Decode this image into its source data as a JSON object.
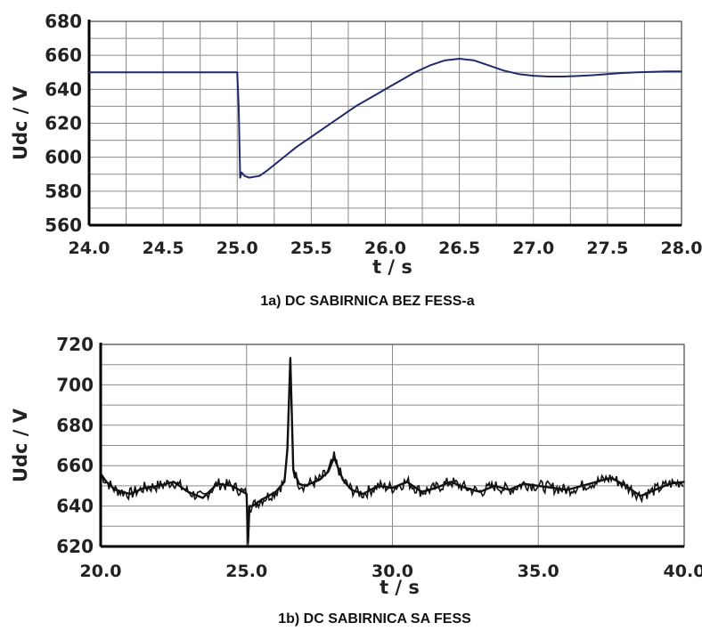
{
  "chart_data": [
    {
      "type": "line",
      "title": "1a) DC SABIRNICA BEZ FESS-a",
      "xlabel": "t / s",
      "ylabel": "Udc / V",
      "xlim": [
        24.0,
        28.0
      ],
      "ylim": [
        560,
        680
      ],
      "xticks": [
        "24.0",
        "24.5",
        "25.0",
        "25.5",
        "26.0",
        "26.5",
        "27.0",
        "27.5",
        "28.0"
      ],
      "yticks": [
        "560",
        "580",
        "600",
        "620",
        "640",
        "660",
        "680"
      ],
      "grid": true,
      "line_color": "#1f2a6b",
      "series": [
        {
          "x": [
            24.0,
            24.5,
            25.0,
            25.01,
            25.02,
            25.03,
            25.05,
            25.08,
            25.15,
            25.2,
            25.3,
            25.4,
            25.5,
            25.6,
            25.7,
            25.8,
            25.9,
            26.0,
            26.1,
            26.2,
            26.3,
            26.4,
            26.5,
            26.6,
            26.7,
            26.8,
            26.9,
            27.0,
            27.1,
            27.2,
            27.3,
            27.4,
            27.5,
            27.6,
            27.7,
            27.8,
            27.9,
            28.0
          ],
          "y": [
            650,
            650,
            650,
            630,
            588,
            591,
            589,
            588,
            589,
            592,
            599,
            606,
            612,
            618,
            624,
            630,
            635,
            640,
            645,
            650,
            654,
            657,
            658,
            657,
            654,
            651,
            649,
            648,
            647.5,
            647.5,
            647.8,
            648.3,
            649,
            649.6,
            650,
            650.3,
            650.5,
            650.5
          ]
        }
      ]
    },
    {
      "type": "line",
      "title": "1b) DC SABIRNICA SA FESS",
      "xlabel": "t / s",
      "ylabel": "Udc / V",
      "xlim": [
        20.0,
        40.0
      ],
      "ylim": [
        620,
        720
      ],
      "xticks": [
        "20.0",
        "25.0",
        "30.0",
        "35.0",
        "40.0"
      ],
      "yticks": [
        "620",
        "640",
        "660",
        "680",
        "700",
        "720"
      ],
      "grid": true,
      "line_color": "#111111",
      "series": [
        {
          "x": [
            20.0,
            20.2,
            20.5,
            21.0,
            21.5,
            22.0,
            22.5,
            23.0,
            23.5,
            24.0,
            24.5,
            25.0,
            25.05,
            25.1,
            25.2,
            25.5,
            26.0,
            26.3,
            26.4,
            26.5,
            26.6,
            26.8,
            27.0,
            27.5,
            27.8,
            28.0,
            28.3,
            28.6,
            29.0,
            29.5,
            30.0,
            30.5,
            31.0,
            31.5,
            32.0,
            32.5,
            33.0,
            33.5,
            34.0,
            34.5,
            35.0,
            35.5,
            36.0,
            36.5,
            37.0,
            37.5,
            38.0,
            38.5,
            39.0,
            39.5,
            40.0
          ],
          "y": [
            656,
            652,
            648,
            646,
            649,
            650,
            652,
            647,
            644,
            651,
            650,
            646,
            622,
            640,
            640,
            643,
            647,
            652,
            668,
            713,
            658,
            651,
            650,
            653,
            657,
            664,
            653,
            648,
            646,
            650,
            649,
            652,
            647,
            649,
            652,
            649,
            647,
            650,
            648,
            651,
            650,
            649,
            648,
            650,
            652,
            654,
            650,
            645,
            648,
            651,
            652
          ]
        }
      ]
    }
  ]
}
